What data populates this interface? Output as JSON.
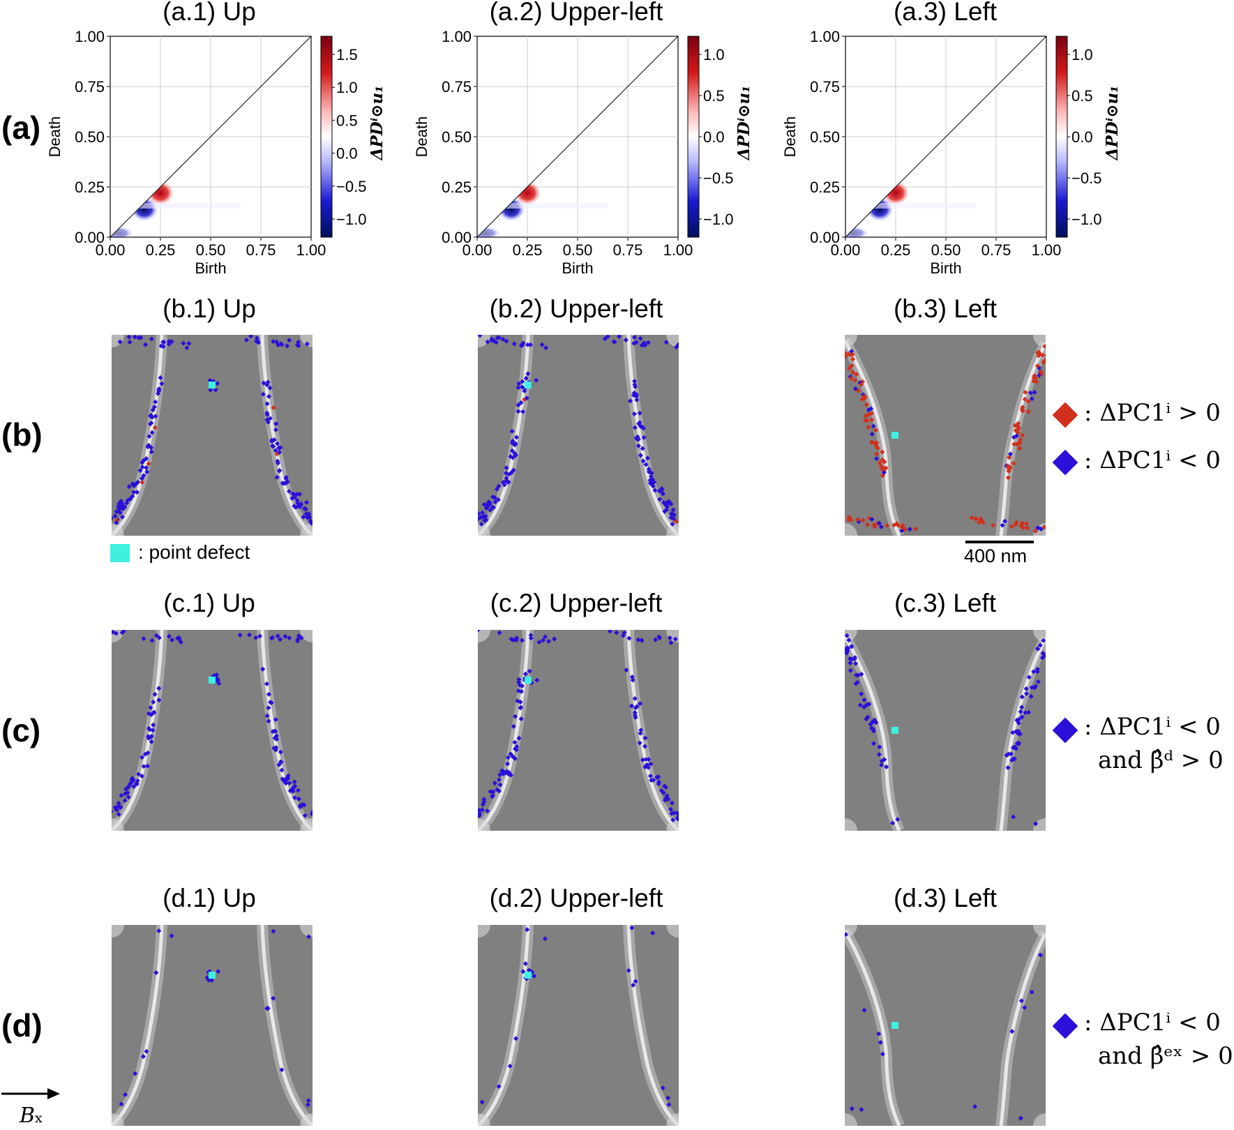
{
  "panels_a": [
    {
      "title": "(a.1) Up",
      "xlabel": "Birth",
      "ylabel": "Death",
      "ticks": [
        "0.00",
        "0.25",
        "0.50",
        "0.75",
        "1.00"
      ],
      "cbar_label": "ΔPDⁱ⊙u₁",
      "cbar_ticks": [
        "1.5",
        "1.0",
        "0.5",
        "0.0",
        "−0.5",
        "−1.0"
      ]
    },
    {
      "title": "(a.2) Upper-left",
      "xlabel": "Birth",
      "ylabel": "Death",
      "ticks": [
        "0.00",
        "0.25",
        "0.50",
        "0.75",
        "1.00"
      ],
      "cbar_label": "ΔPDⁱ⊙u₁",
      "cbar_ticks": [
        "1.0",
        "0.5",
        "0.0",
        "−0.5",
        "−1.0"
      ]
    },
    {
      "title": "(a.3) Left",
      "xlabel": "Birth",
      "ylabel": "Death",
      "ticks": [
        "0.00",
        "0.25",
        "0.50",
        "0.75",
        "1.00"
      ],
      "cbar_label": "ΔPDⁱ⊙u₁",
      "cbar_ticks": [
        "1.0",
        "0.5",
        "0.0",
        "−0.5",
        "−1.0"
      ]
    }
  ],
  "panels_b": [
    {
      "title": "(b.1) Up"
    },
    {
      "title": "(b.2) Upper-left"
    },
    {
      "title": "(b.3) Left"
    }
  ],
  "panels_c": [
    {
      "title": "(c.1) Up"
    },
    {
      "title": "(c.2) Upper-left"
    },
    {
      "title": "(c.3) Left"
    }
  ],
  "panels_d": [
    {
      "title": "(d.1) Up"
    },
    {
      "title": "(d.2) Upper-left"
    },
    {
      "title": "(d.3) Left"
    }
  ],
  "row_labels": [
    "(a)",
    "(b)",
    "(c)",
    "(d)"
  ],
  "legend_b": {
    "pos": ": ΔPC1ⁱ > 0",
    "neg": ": ΔPC1ⁱ < 0"
  },
  "legend_c": {
    "line1": ": ΔPC1ⁱ < 0",
    "line2": "and β̂ᵈ > 0"
  },
  "legend_d": {
    "line1": ": ΔPC1ⁱ < 0",
    "line2": "and β̂ᵉˣ > 0"
  },
  "point_defect_label": ": point defect",
  "scale_bar_label": "400 nm",
  "field_label": "Bx",
  "colors": {
    "red": "#d0301c",
    "blue": "#2a10d8",
    "cyan": "#3ef0e0",
    "gray": "#808080"
  }
}
